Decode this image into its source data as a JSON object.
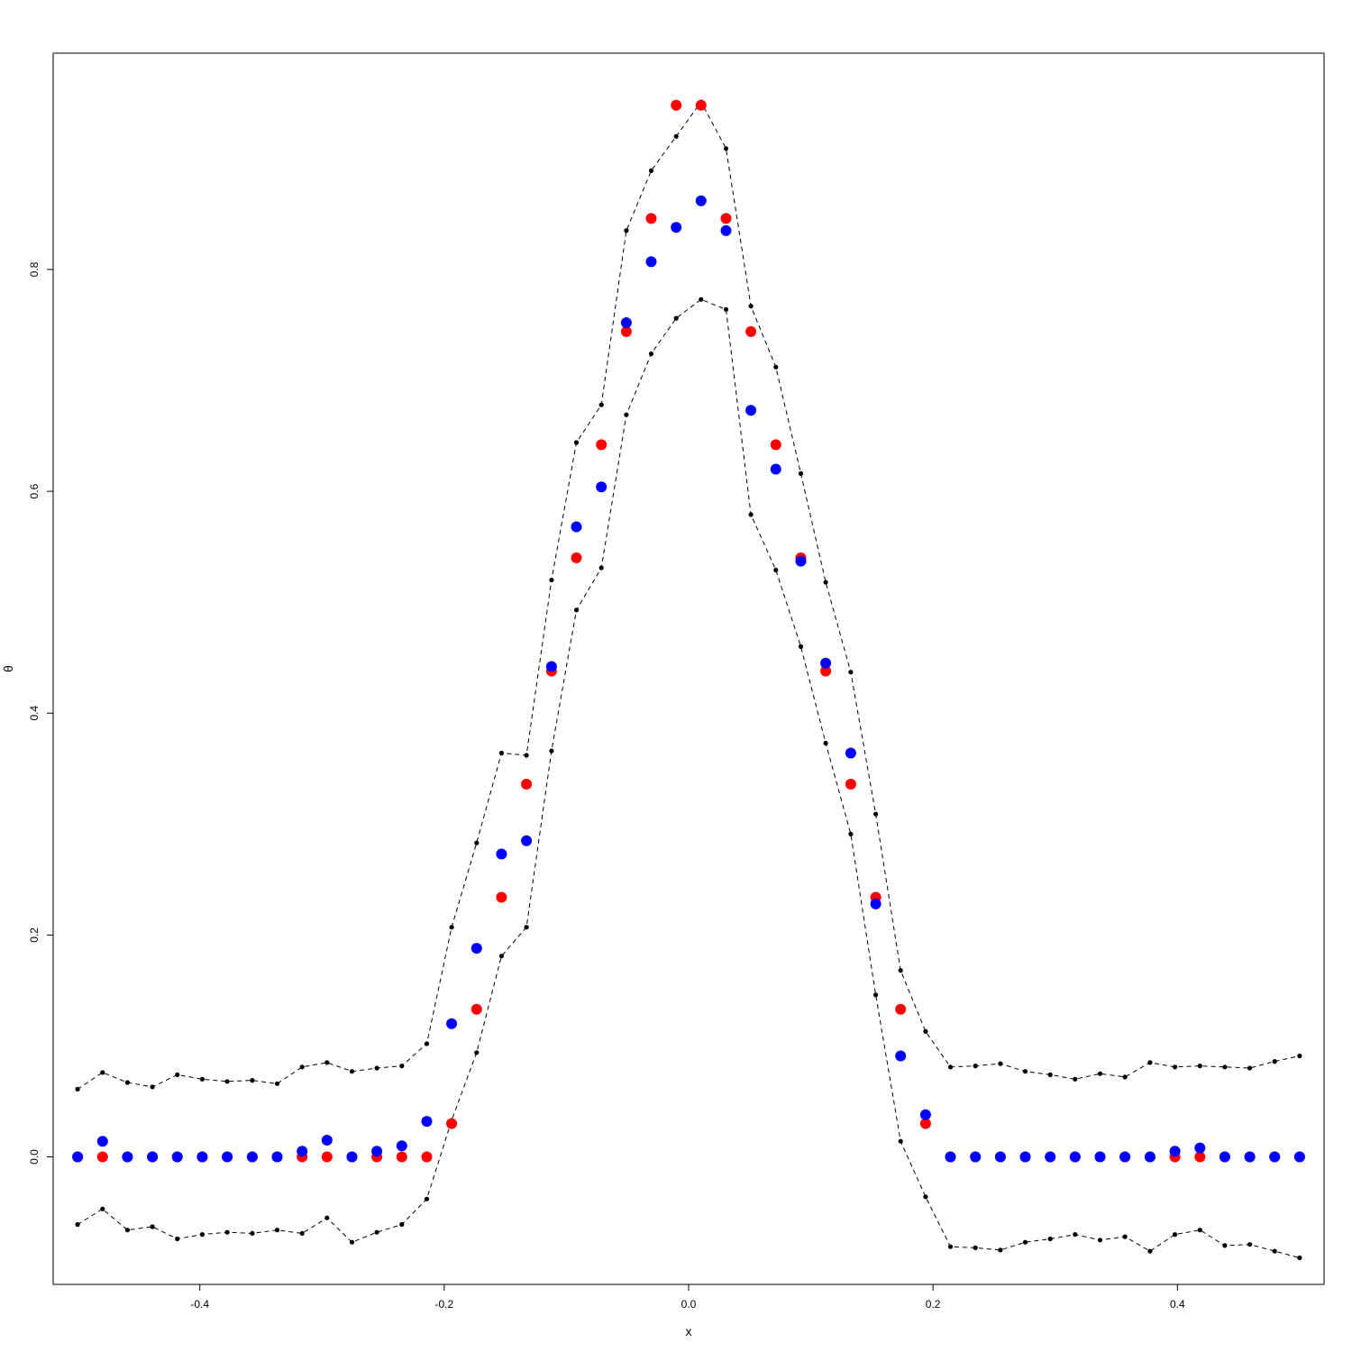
{
  "chart_data": {
    "type": "scatter",
    "title": "",
    "xlabel": "x",
    "ylabel": "θ",
    "xlim": [
      -0.52,
      0.52
    ],
    "ylim": [
      -0.115,
      0.995
    ],
    "x_ticks": [
      -0.4,
      -0.2,
      0.0,
      0.2,
      0.4
    ],
    "x_tick_labels": [
      "-0.4",
      "-0.2",
      "0.0",
      "0.2",
      "0.4"
    ],
    "y_ticks": [
      0.0,
      0.2,
      0.4,
      0.6,
      0.8
    ],
    "y_tick_labels": [
      "0.0",
      "0.2",
      "0.4",
      "0.6",
      "0.8"
    ],
    "grid": false,
    "legend": "none",
    "x": [
      -0.5,
      -0.4796,
      -0.4592,
      -0.4388,
      -0.4184,
      -0.398,
      -0.3776,
      -0.3571,
      -0.3367,
      -0.3163,
      -0.2959,
      -0.2755,
      -0.2551,
      -0.2347,
      -0.2143,
      -0.1939,
      -0.1735,
      -0.1531,
      -0.1327,
      -0.1122,
      -0.0918,
      -0.0714,
      -0.051,
      -0.0306,
      -0.0102,
      0.0102,
      0.0306,
      0.051,
      0.0714,
      0.0918,
      0.1122,
      0.1327,
      0.1531,
      0.1735,
      0.1939,
      0.2143,
      0.2347,
      0.2551,
      0.2755,
      0.2959,
      0.3163,
      0.3367,
      0.3571,
      0.3776,
      0.398,
      0.4184,
      0.4388,
      0.4592,
      0.4796,
      0.5
    ],
    "series": [
      {
        "color": "#ff0000",
        "style": "points",
        "values": [
          0,
          0,
          0,
          0,
          0,
          0,
          0,
          0,
          0,
          0,
          0,
          0,
          0,
          0,
          0,
          0.03,
          0.133,
          0.234,
          0.336,
          0.438,
          0.54,
          0.642,
          0.744,
          0.846,
          0.948,
          0.948,
          0.846,
          0.744,
          0.642,
          0.54,
          0.438,
          0.336,
          0.234,
          0.133,
          0.03,
          0,
          0,
          0,
          0,
          0,
          0,
          0,
          0,
          0,
          0,
          0,
          0,
          0,
          0,
          0
        ]
      },
      {
        "color": "#0000ff",
        "style": "points",
        "values": [
          0,
          0.014,
          0,
          0,
          0,
          0,
          0,
          0,
          0,
          0.005,
          0.015,
          0,
          0.005,
          0.01,
          0.032,
          0.12,
          0.188,
          0.273,
          0.285,
          0.442,
          0.568,
          0.604,
          0.752,
          0.807,
          0.838,
          0.862,
          0.835,
          0.673,
          0.62,
          0.537,
          0.445,
          0.364,
          0.228,
          0.091,
          0.038,
          0,
          0,
          0,
          0,
          0,
          0,
          0,
          0,
          0,
          0.005,
          0.008,
          0,
          0,
          0,
          0
        ]
      },
      {
        "color": "#000000",
        "style": "dashed-line-with-points",
        "values": [
          0.061,
          0.076,
          0.067,
          0.063,
          0.074,
          0.07,
          0.068,
          0.069,
          0.066,
          0.081,
          0.085,
          0.077,
          0.08,
          0.082,
          0.102,
          0.207,
          0.283,
          0.364,
          0.362,
          0.52,
          0.644,
          0.678,
          0.835,
          0.889,
          0.92,
          0.951,
          0.909,
          0.767,
          0.712,
          0.616,
          0.518,
          0.437,
          0.309,
          0.168,
          0.113,
          0.081,
          0.082,
          0.084,
          0.077,
          0.074,
          0.07,
          0.075,
          0.072,
          0.085,
          0.081,
          0.082,
          0.081,
          0.08,
          0.086,
          0.091
        ]
      },
      {
        "color": "#000000",
        "style": "dashed-line-with-points",
        "values": [
          -0.061,
          -0.047,
          -0.066,
          -0.063,
          -0.074,
          -0.07,
          -0.068,
          -0.069,
          -0.066,
          -0.069,
          -0.055,
          -0.077,
          -0.068,
          -0.061,
          -0.038,
          0.033,
          0.094,
          0.181,
          0.207,
          0.366,
          0.493,
          0.531,
          0.669,
          0.724,
          0.756,
          0.773,
          0.764,
          0.579,
          0.529,
          0.46,
          0.373,
          0.291,
          0.146,
          0.014,
          -0.036,
          -0.081,
          -0.082,
          -0.084,
          -0.077,
          -0.074,
          -0.07,
          -0.075,
          -0.072,
          -0.085,
          -0.07,
          -0.066,
          -0.08,
          -0.079,
          -0.085,
          -0.091
        ]
      }
    ]
  }
}
